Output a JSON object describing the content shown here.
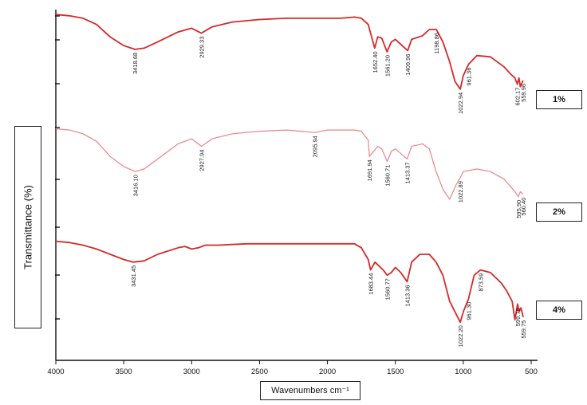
{
  "chart_data": {
    "type": "line",
    "xlabel": "Wavenumbers cm⁻¹",
    "ylabel": "Transmittance (%)",
    "x_ticks": [
      "4000",
      "3500",
      "3000",
      "2500",
      "2000",
      "1500",
      "1000",
      "500"
    ],
    "xlim": [
      4000,
      500
    ],
    "grid": false,
    "series": [
      {
        "name": "1%",
        "color": "#d42a2a",
        "x": [
          4000,
          3900,
          3800,
          3700,
          3600,
          3500,
          3418,
          3350,
          3250,
          3100,
          3000,
          2929,
          2850,
          2700,
          2500,
          2300,
          2100,
          1900,
          1800,
          1750,
          1700,
          1652,
          1630,
          1600,
          1561,
          1530,
          1500,
          1450,
          1409,
          1380,
          1300,
          1250,
          1198,
          1150,
          1100,
          1060,
          1022,
          1000,
          961,
          900,
          800,
          700,
          650,
          620,
          602,
          590,
          580,
          560
        ],
        "y": [
          0.96,
          0.95,
          0.93,
          0.88,
          0.78,
          0.71,
          0.68,
          0.69,
          0.74,
          0.82,
          0.85,
          0.81,
          0.86,
          0.9,
          0.92,
          0.93,
          0.93,
          0.93,
          0.94,
          0.93,
          0.88,
          0.69,
          0.78,
          0.77,
          0.66,
          0.74,
          0.76,
          0.71,
          0.67,
          0.76,
          0.79,
          0.84,
          0.84,
          0.74,
          0.58,
          0.42,
          0.36,
          0.47,
          0.56,
          0.63,
          0.62,
          0.54,
          0.48,
          0.45,
          0.4,
          0.45,
          0.38,
          0.43
        ],
        "peak_labels": [
          {
            "x": 3418,
            "label": "3418.68"
          },
          {
            "x": 2929,
            "label": "2929.33"
          },
          {
            "x": 1652,
            "label": "1652.40"
          },
          {
            "x": 1561,
            "label": "1561.20"
          },
          {
            "x": 1409,
            "label": "1409.96"
          },
          {
            "x": 1198,
            "label": "1198.86"
          },
          {
            "x": 1022,
            "label": "1022.94"
          },
          {
            "x": 961,
            "label": "961.36"
          },
          {
            "x": 602,
            "label": "602.17"
          },
          {
            "x": 559,
            "label": "559.96"
          }
        ]
      },
      {
        "name": "2%",
        "color": "#e8858a",
        "x": [
          4000,
          3900,
          3800,
          3700,
          3600,
          3500,
          3416,
          3350,
          3250,
          3100,
          3000,
          2927,
          2850,
          2700,
          2500,
          2300,
          2095,
          2000,
          1900,
          1800,
          1750,
          1700,
          1691,
          1630,
          1600,
          1560,
          1530,
          1500,
          1413,
          1380,
          1300,
          1250,
          1200,
          1150,
          1100,
          1050,
          1022,
          1000,
          900,
          800,
          700,
          650,
          620,
          595,
          580,
          560
        ],
        "y": [
          0.94,
          0.93,
          0.9,
          0.84,
          0.72,
          0.64,
          0.6,
          0.62,
          0.7,
          0.82,
          0.86,
          0.8,
          0.86,
          0.9,
          0.92,
          0.93,
          0.91,
          0.93,
          0.93,
          0.93,
          0.92,
          0.85,
          0.72,
          0.8,
          0.78,
          0.68,
          0.76,
          0.78,
          0.7,
          0.8,
          0.82,
          0.78,
          0.6,
          0.46,
          0.38,
          0.5,
          0.55,
          0.6,
          0.62,
          0.6,
          0.54,
          0.48,
          0.44,
          0.4,
          0.44,
          0.42
        ],
        "peak_labels": [
          {
            "x": 3416,
            "label": "3416.10"
          },
          {
            "x": 2927,
            "label": "2927.94"
          },
          {
            "x": 2095,
            "label": "2095.94"
          },
          {
            "x": 1691,
            "label": "1691.94"
          },
          {
            "x": 1560,
            "label": "1560.71"
          },
          {
            "x": 1413,
            "label": "1413.37"
          },
          {
            "x": 1022,
            "label": "1022.89"
          },
          {
            "x": 595,
            "label": "595.90"
          },
          {
            "x": 560,
            "label": "560.40"
          }
        ]
      },
      {
        "name": "4%",
        "color": "#d42a2a",
        "x": [
          4000,
          3900,
          3800,
          3700,
          3600,
          3500,
          3431,
          3350,
          3250,
          3100,
          3050,
          3000,
          2950,
          2900,
          2800,
          2600,
          2400,
          2200,
          2000,
          1850,
          1800,
          1750,
          1700,
          1683,
          1650,
          1620,
          1590,
          1560,
          1530,
          1500,
          1460,
          1413,
          1380,
          1320,
          1250,
          1200,
          1150,
          1100,
          1022,
          1000,
          961,
          920,
          873,
          800,
          720,
          680,
          640,
          620,
          600,
          590,
          575,
          559
        ],
        "y": [
          0.96,
          0.95,
          0.93,
          0.9,
          0.86,
          0.82,
          0.8,
          0.81,
          0.86,
          0.91,
          0.92,
          0.9,
          0.91,
          0.93,
          0.93,
          0.94,
          0.94,
          0.94,
          0.94,
          0.94,
          0.94,
          0.91,
          0.82,
          0.74,
          0.8,
          0.77,
          0.74,
          0.7,
          0.72,
          0.76,
          0.72,
          0.65,
          0.8,
          0.86,
          0.86,
          0.8,
          0.7,
          0.5,
          0.34,
          0.42,
          0.52,
          0.7,
          0.74,
          0.72,
          0.64,
          0.58,
          0.5,
          0.36,
          0.48,
          0.42,
          0.45,
          0.38
        ],
        "peak_labels": [
          {
            "x": 3431,
            "label": "3431.45"
          },
          {
            "x": 1683,
            "label": "1683.44"
          },
          {
            "x": 1560,
            "label": "1560.77"
          },
          {
            "x": 1413,
            "label": "1413.36"
          },
          {
            "x": 1022,
            "label": "1022.20"
          },
          {
            "x": 961,
            "label": "961.30"
          },
          {
            "x": 873,
            "label": "873.59"
          },
          {
            "x": 599,
            "label": "599.75"
          },
          {
            "x": 559,
            "label": "559.75"
          }
        ]
      }
    ]
  }
}
